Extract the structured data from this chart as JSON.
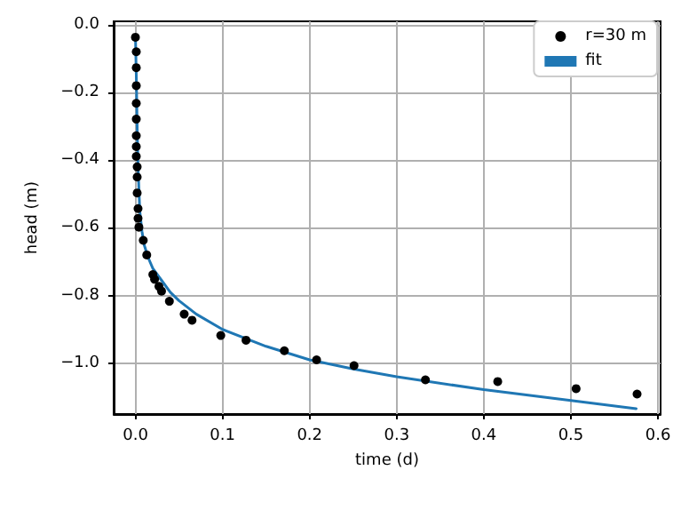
{
  "chart_data": {
    "type": "scatter",
    "xlabel": "time (d)",
    "ylabel": "head (m)",
    "xlim": [
      -0.025,
      0.603
    ],
    "ylim": [
      -1.15,
      0.01
    ],
    "xticks": [
      {
        "value": 0,
        "label": "0.0"
      },
      {
        "value": 0.1,
        "label": "0.1"
      },
      {
        "value": 0.2,
        "label": "0.2"
      },
      {
        "value": 0.3,
        "label": "0.3"
      },
      {
        "value": 0.4,
        "label": "0.4"
      },
      {
        "value": 0.5,
        "label": "0.5"
      },
      {
        "value": 0.6,
        "label": "0.6"
      }
    ],
    "yticks": [
      {
        "value": 0,
        "label": "0.0"
      },
      {
        "value": -0.2,
        "label": "−0.2"
      },
      {
        "value": -0.4,
        "label": "−0.4"
      },
      {
        "value": -0.6,
        "label": "−0.6"
      },
      {
        "value": -0.8,
        "label": "−0.8"
      },
      {
        "value": -1.0,
        "label": "−1.0"
      }
    ],
    "grid": true,
    "legend": "top right",
    "series": [
      {
        "name": "r=30 m",
        "marker": "circle",
        "color": "#000000",
        "x": [
          0.0,
          0.001,
          0.001,
          0.001,
          0.001,
          0.001,
          0.001,
          0.001,
          0.001,
          0.002,
          0.002,
          0.002,
          0.003,
          0.003,
          0.004,
          0.009,
          0.013,
          0.02,
          0.022,
          0.027,
          0.03,
          0.039,
          0.056,
          0.065,
          0.098,
          0.127,
          0.171,
          0.208,
          0.251,
          0.333,
          0.416,
          0.506,
          0.576
        ],
        "values": [
          -0.037,
          -0.08,
          -0.127,
          -0.18,
          -0.232,
          -0.279,
          -0.328,
          -0.36,
          -0.389,
          -0.42,
          -0.45,
          -0.497,
          -0.543,
          -0.572,
          -0.598,
          -0.637,
          -0.68,
          -0.738,
          -0.752,
          -0.773,
          -0.787,
          -0.817,
          -0.855,
          -0.873,
          -0.918,
          -0.932,
          -0.963,
          -0.99,
          -1.007,
          -1.049,
          -1.054,
          -1.075,
          -1.091
        ]
      },
      {
        "name": "fit",
        "type": "line",
        "marker": "none",
        "line_style": "solid",
        "color": "#1f77b4",
        "x": [
          0.0,
          0.001,
          0.002,
          0.003,
          0.005,
          0.0075,
          0.01,
          0.015,
          0.02,
          0.03,
          0.04,
          0.05,
          0.07,
          0.1,
          0.15,
          0.2,
          0.25,
          0.3,
          0.4,
          0.5,
          0.575
        ],
        "values": [
          -0.03,
          -0.15,
          -0.3,
          -0.42,
          -0.55,
          -0.61,
          -0.65,
          -0.69,
          -0.72,
          -0.755,
          -0.79,
          -0.815,
          -0.855,
          -0.9,
          -0.95,
          -0.99,
          -1.017,
          -1.04,
          -1.078,
          -1.11,
          -1.134
        ]
      }
    ]
  }
}
